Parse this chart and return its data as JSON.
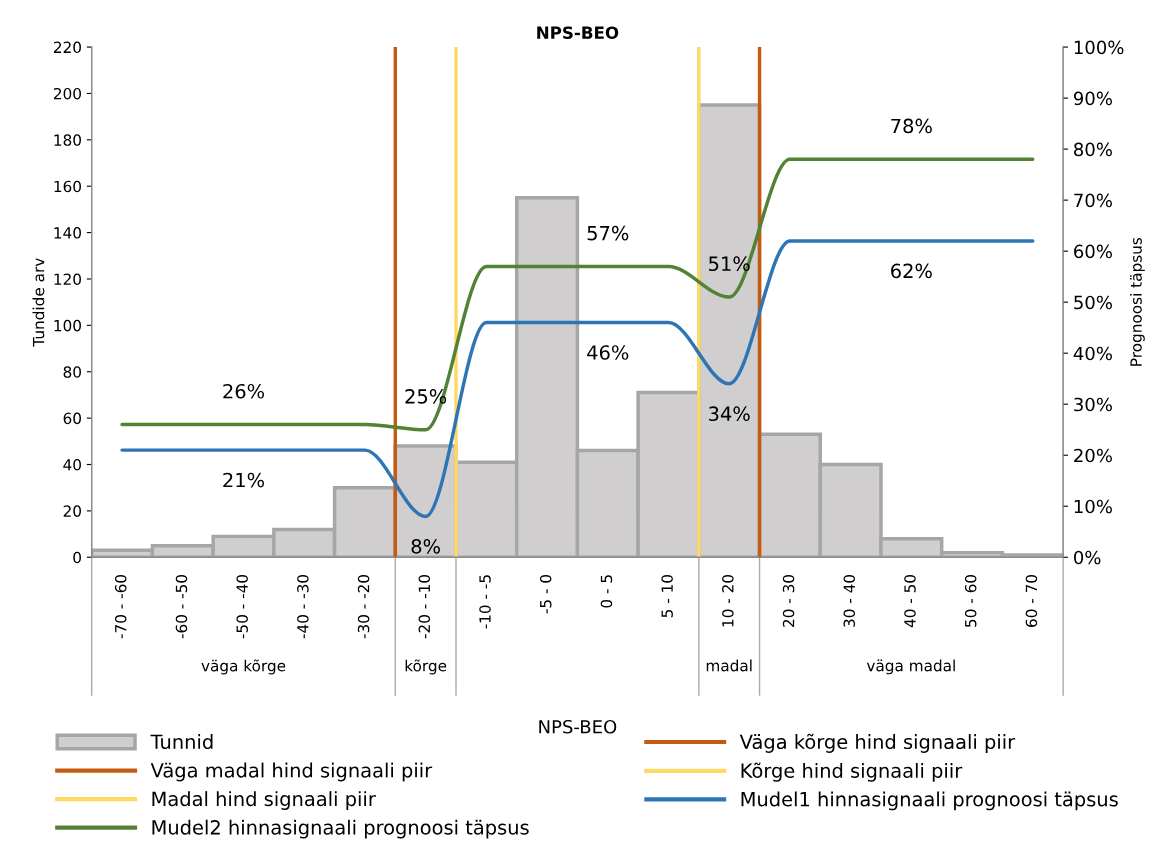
{
  "chart_data": {
    "type": "bar",
    "title": "NPS-BEO",
    "xlabel": "NPS-BEO",
    "ylabel": "Tundide arv",
    "y2label": "Prognoosi täpsus",
    "categories": [
      "-70 - -60",
      "-60 - -50",
      "-50 - -40",
      "-40 - -30",
      "-30 - -20",
      "-20 - -10",
      "-10 - -5",
      "-5 - 0",
      "0 - 5",
      "5 - 10",
      "10 - 20",
      "20 - 30",
      "30 - 40",
      "40 - 50",
      "50 - 60",
      "60 - 70"
    ],
    "series": [
      {
        "name": "Tunnid",
        "color": "#d0cece",
        "values": [
          3,
          5,
          9,
          12,
          30,
          48,
          41,
          155,
          46,
          71,
          195,
          53,
          40,
          8,
          2,
          1
        ]
      },
      {
        "name": "Mudel1 hinnasignaali prognoosi täpsus",
        "type": "line",
        "axis": "y2",
        "color": "#2e75b6",
        "values": [
          21,
          21,
          21,
          21,
          21,
          8,
          46,
          46,
          46,
          46,
          34,
          62,
          62,
          62,
          62,
          62
        ],
        "value_labels": [
          null,
          null,
          "21%",
          null,
          null,
          "8%",
          null,
          null,
          "46%",
          null,
          "34%",
          null,
          null,
          "62%",
          null,
          null
        ]
      },
      {
        "name": "Mudel2 hinnasignaali prognoosi täpsus",
        "type": "line",
        "axis": "y2",
        "color": "#548235",
        "values": [
          26,
          26,
          26,
          26,
          26,
          25,
          57,
          57,
          57,
          57,
          51,
          78,
          78,
          78,
          78,
          78
        ],
        "value_labels": [
          null,
          null,
          "26%",
          null,
          null,
          "25%",
          null,
          null,
          "57%",
          null,
          "51%",
          null,
          null,
          "78%",
          null,
          null
        ]
      }
    ],
    "ref_lines": [
      {
        "axis": "x",
        "label": "Väga kõrge hind signaali piir",
        "color": "#c55a11"
      },
      {
        "axis": "x",
        "label": "Väga madal hind signaali piir",
        "color": "#c55a11"
      },
      {
        "axis": "x",
        "label": "Kõrge hind signaali piir",
        "color": "#ffd966"
      },
      {
        "axis": "x",
        "label": "Madal hind signaali piir",
        "color": "#ffd966"
      }
    ],
    "annotations": [
      "väga kõrge",
      "kõrge",
      "madal",
      "väga madal"
    ],
    "ylim": [
      0,
      220
    ],
    "yticks": [
      0,
      20,
      40,
      60,
      80,
      100,
      120,
      140,
      160,
      180,
      200,
      220
    ],
    "y2lim": [
      0,
      100
    ],
    "y2ticks": [
      {
        "value": 0,
        "label": "0%"
      },
      {
        "value": 10,
        "label": "10%"
      },
      {
        "value": 20,
        "label": "20%"
      },
      {
        "value": 30,
        "label": "30%"
      },
      {
        "value": 40,
        "label": "40%"
      },
      {
        "value": 50,
        "label": "50%"
      },
      {
        "value": 60,
        "label": "60%"
      },
      {
        "value": 70,
        "label": "70%"
      },
      {
        "value": 80,
        "label": "80%"
      },
      {
        "value": 90,
        "label": "90%"
      },
      {
        "value": 100,
        "label": "100%"
      }
    ],
    "grid": false,
    "legend": "bottom"
  }
}
